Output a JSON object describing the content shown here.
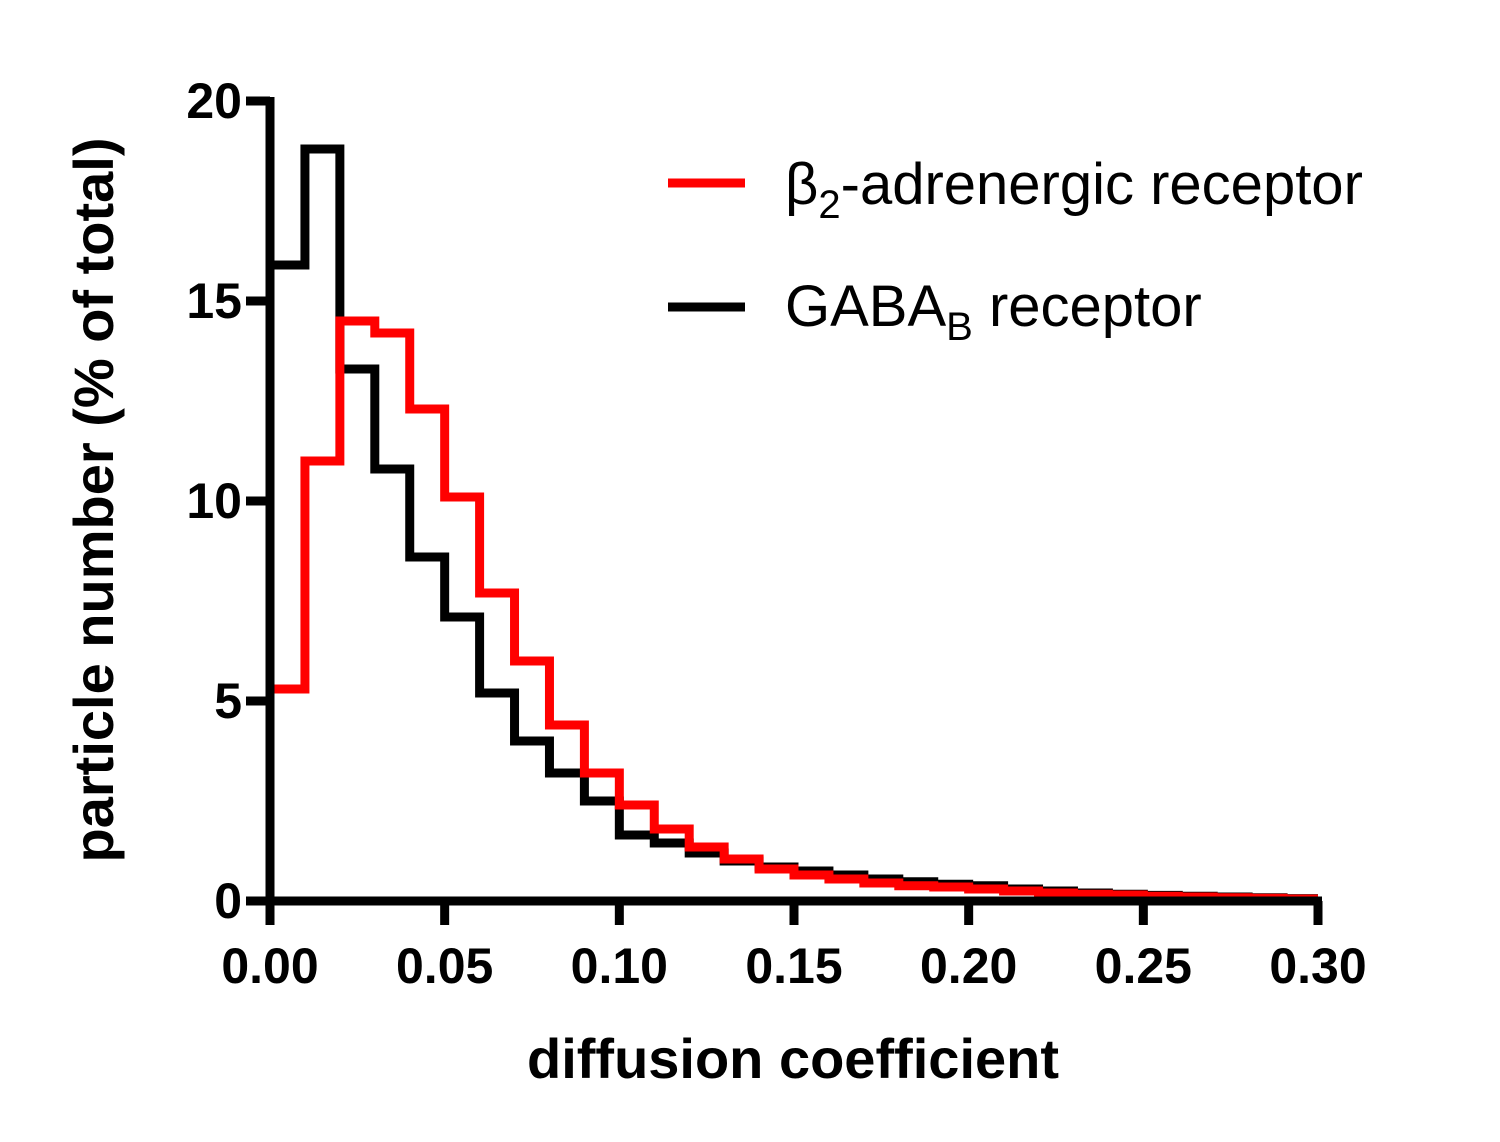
{
  "chart_data": {
    "type": "line",
    "step": true,
    "xlabel": "diffusion coefficient",
    "ylabel": "particle number (% of total)",
    "xlim": [
      0,
      0.3
    ],
    "ylim": [
      0,
      20
    ],
    "x_ticks": [
      "0.00",
      "0.05",
      "0.10",
      "0.15",
      "0.20",
      "0.25",
      "0.30"
    ],
    "y_ticks": [
      "0",
      "5",
      "10",
      "15",
      "20"
    ],
    "grid": false,
    "legend_position": "top-right",
    "bin_edges": [
      0,
      0.01,
      0.02,
      0.03,
      0.04,
      0.05,
      0.06,
      0.07,
      0.08,
      0.09,
      0.1,
      0.11,
      0.12,
      0.13,
      0.14,
      0.15,
      0.16,
      0.17,
      0.18,
      0.19,
      0.2,
      0.21,
      0.22,
      0.23,
      0.24,
      0.25,
      0.26,
      0.27,
      0.28,
      0.29,
      0.3
    ],
    "series": [
      {
        "name": "β2-adrenergic receptor",
        "legend_main": "β",
        "legend_sub": "2",
        "legend_rest": "-adrenergic receptor",
        "color": "#ff0000",
        "values": [
          5.3,
          11.0,
          14.5,
          14.2,
          12.3,
          10.1,
          7.7,
          6.0,
          4.4,
          3.2,
          2.4,
          1.8,
          1.35,
          1.05,
          0.8,
          0.65,
          0.55,
          0.45,
          0.38,
          0.35,
          0.3,
          0.25,
          0.2,
          0.17,
          0.15,
          0.12,
          0.1,
          0.08,
          0.07,
          0.05
        ]
      },
      {
        "name": "GABAB receptor",
        "legend_main": "GABA",
        "legend_sub": "B",
        "legend_rest": " receptor",
        "color": "#000000",
        "values": [
          15.9,
          18.8,
          13.3,
          10.8,
          8.6,
          7.1,
          5.2,
          4.0,
          3.2,
          2.5,
          1.65,
          1.45,
          1.2,
          1.0,
          0.85,
          0.75,
          0.65,
          0.55,
          0.48,
          0.42,
          0.38,
          0.3,
          0.25,
          0.2,
          0.17,
          0.14,
          0.12,
          0.1,
          0.08,
          0.06
        ]
      }
    ]
  }
}
